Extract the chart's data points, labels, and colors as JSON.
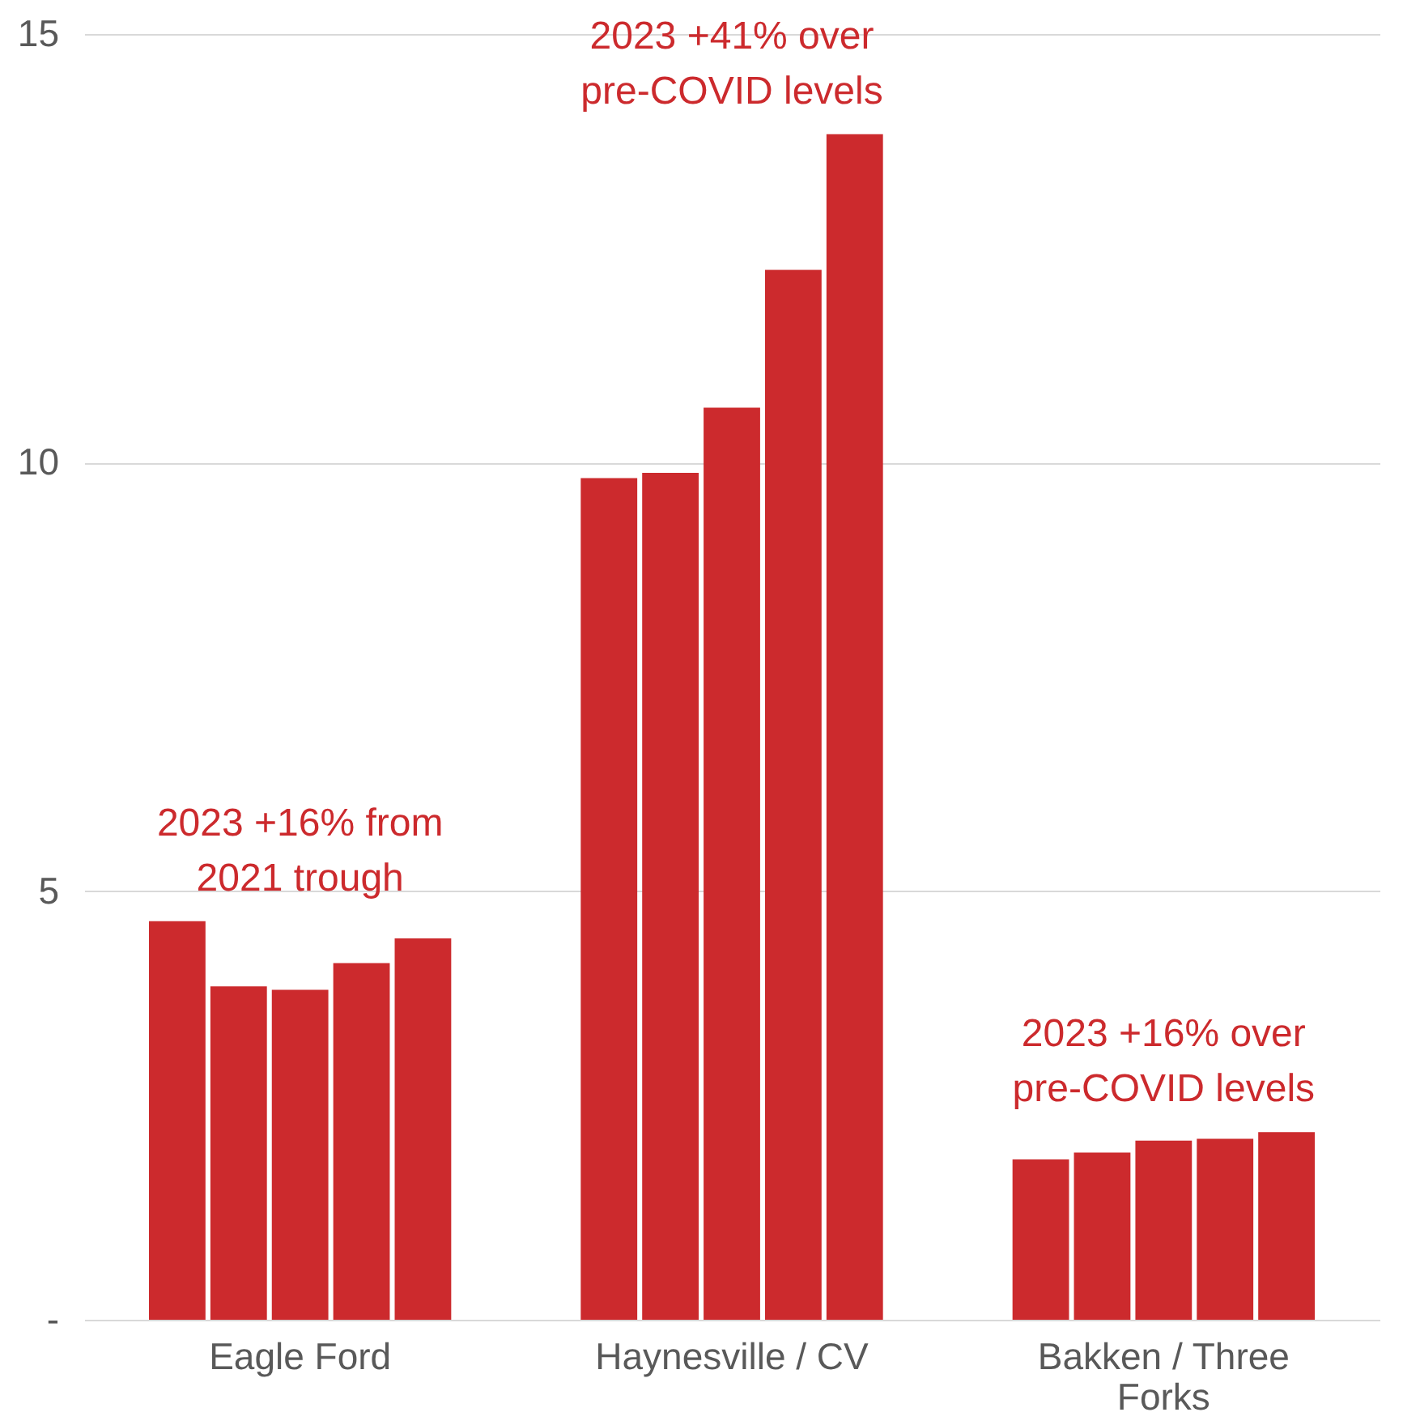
{
  "chart_data": {
    "type": "bar",
    "categories": [
      "Eagle Ford",
      "Haynesville / CV",
      "Bakken / Three Forks"
    ],
    "series": [
      {
        "color": "#cc2a2d",
        "values": [
          4.65,
          9.82,
          1.87
        ]
      },
      {
        "color": "#cc2a2d",
        "values": [
          3.89,
          9.88,
          1.95
        ]
      },
      {
        "color": "#cc2a2d",
        "values": [
          3.85,
          10.64,
          2.09
        ]
      },
      {
        "color": "#cc2a2d",
        "values": [
          4.16,
          12.25,
          2.11
        ]
      },
      {
        "color": "#cc2a2d",
        "values": [
          4.45,
          13.83,
          2.19
        ]
      }
    ],
    "ylim": [
      0,
      15
    ],
    "yticks": [
      {
        "value": 0,
        "label": "-"
      },
      5,
      10,
      15
    ],
    "grid": "y",
    "legend": false,
    "annotations": [
      "2023 +16% from\n2021 trough",
      "2023 +41% over\npre-COVID levels",
      "2023 +16% over\npre-COVID levels"
    ]
  }
}
